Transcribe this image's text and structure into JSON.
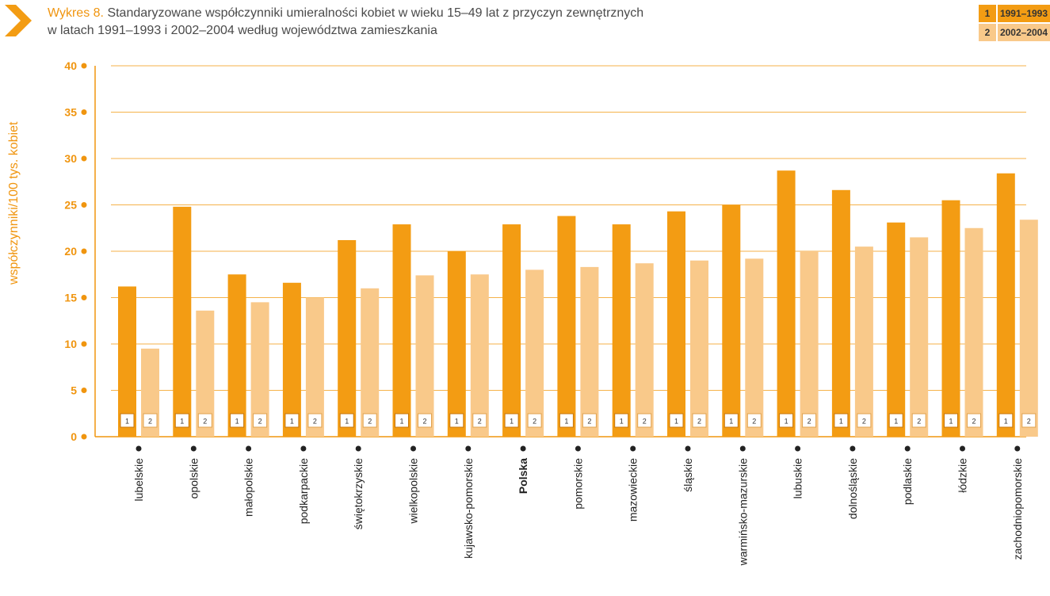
{
  "header": {
    "title_prefix": "Wykres 8.",
    "title_line1": "Standaryzowane współczynniki umieralności kobiet w wieku 15–49 lat z przyczyn zewnętrznych",
    "title_line2": "w latach 1991–1993 i 2002–2004 według województwa zamieszkania"
  },
  "legend": [
    {
      "num": "1",
      "label": "1991–1993",
      "color": "#f39c13"
    },
    {
      "num": "2",
      "label": "2002–2004",
      "color": "#f9c98a"
    }
  ],
  "colors": {
    "accent": "#f0950f",
    "series1": "#f39c13",
    "series2": "#f9c98a",
    "grid": "#f5b24a"
  },
  "chart_data": {
    "type": "bar",
    "ylabel": "współczynniki/100 tys. kobiet",
    "ylim": [
      0,
      40
    ],
    "yticks": [
      "0",
      "5",
      "10",
      "15",
      "20",
      "25",
      "30",
      "35",
      "40"
    ],
    "categories": [
      "lubelskie",
      "opolskie",
      "małopolskie",
      "podkarpackie",
      "świętokrzyskie",
      "wielkopolskie",
      "kujawsko-pomorskie",
      "Polska",
      "pomorskie",
      "mazowieckie",
      "śląskie",
      "warmińsko-mazurskie",
      "lubuskie",
      "dolnośląskie",
      "podlaskie",
      "łódzkie",
      "zachodniopomorskie"
    ],
    "highlight_category": "Polska",
    "series": [
      {
        "name": "1991–1993",
        "marker": "1",
        "values": [
          16.2,
          24.8,
          17.5,
          16.6,
          21.2,
          22.9,
          20.0,
          22.9,
          23.8,
          22.9,
          24.3,
          25.0,
          28.7,
          26.6,
          23.1,
          25.5,
          28.4
        ]
      },
      {
        "name": "2002–2004",
        "marker": "2",
        "values": [
          9.5,
          13.6,
          14.5,
          15.0,
          16.0,
          17.4,
          17.5,
          18.0,
          18.3,
          18.7,
          19.0,
          19.2,
          20.0,
          20.5,
          21.5,
          22.5,
          23.4
        ]
      }
    ],
    "grid": true,
    "legend_position": "top-right"
  }
}
